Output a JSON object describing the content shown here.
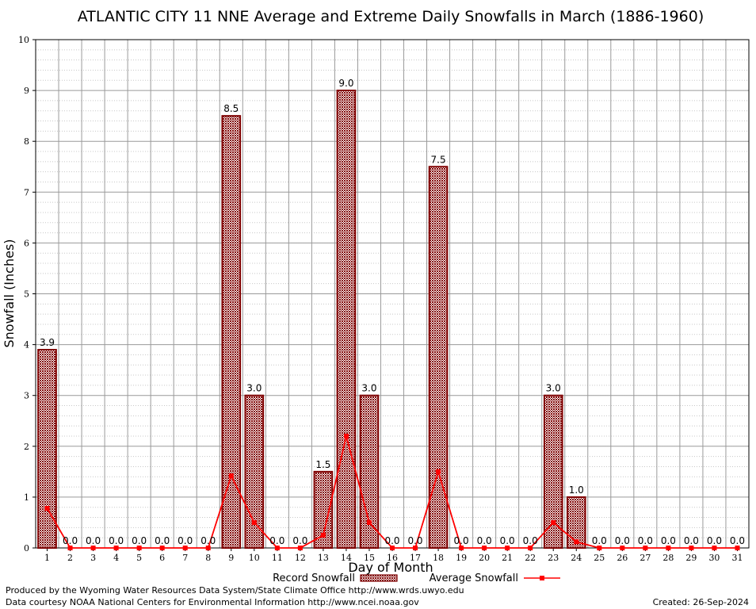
{
  "chart_data": {
    "type": "bar",
    "title": "ATLANTIC CITY 11 NNE Average and Extreme Daily Snowfalls in March (1886-1960)",
    "xlabel": "Day of Month",
    "ylabel": "Snowfall (Inches)",
    "ylim": [
      0,
      10
    ],
    "yticks": [
      "0",
      "1",
      "2",
      "3",
      "4",
      "5",
      "6",
      "7",
      "8",
      "9",
      "10"
    ],
    "grid": true,
    "legend_position": "bottom-center",
    "categories": [
      "1",
      "2",
      "3",
      "4",
      "5",
      "6",
      "7",
      "8",
      "9",
      "10",
      "11",
      "12",
      "13",
      "14",
      "15",
      "16",
      "17",
      "18",
      "19",
      "20",
      "21",
      "22",
      "23",
      "24",
      "25",
      "26",
      "27",
      "28",
      "29",
      "30",
      "31"
    ],
    "series": [
      {
        "name": "Record Snowfall",
        "kind": "bar",
        "color": "#800000",
        "values": [
          3.9,
          0,
          0,
          0,
          0,
          0,
          0,
          0,
          8.5,
          3.0,
          0,
          0,
          1.5,
          9.0,
          3.0,
          0,
          0,
          7.5,
          0,
          0,
          0,
          0,
          3.0,
          1.0,
          0,
          0,
          0,
          0,
          0,
          0,
          0
        ],
        "labels": [
          "3.9",
          "0.0",
          "0.0",
          "0.0",
          "0.0",
          "0.0",
          "0.0",
          "0.0",
          "8.5",
          "3.0",
          "0.0",
          "0.0",
          "1.5",
          "9.0",
          "3.0",
          "0.0",
          "0.0",
          "7.5",
          "0.0",
          "0.0",
          "0.0",
          "0.0",
          "3.0",
          "1.0",
          "0.0",
          "0.0",
          "0.0",
          "0.0",
          "0.0",
          "0.0",
          "0.0"
        ]
      },
      {
        "name": "Average Snowfall",
        "kind": "line",
        "color": "#ff0000",
        "values": [
          0.78,
          0,
          0,
          0,
          0,
          0,
          0,
          0,
          1.42,
          0.5,
          0,
          0,
          0.25,
          2.2,
          0.5,
          0,
          0,
          1.5,
          0,
          0,
          0,
          0,
          0.5,
          0.12,
          0,
          0,
          0,
          0,
          0,
          0,
          0
        ]
      }
    ]
  },
  "footer": {
    "produced_by": "Produced by the Wyoming Water Resources Data System/State Climate Office http://www.wrds.uwyo.edu",
    "data_courtesy": "Data courtesy NOAA National Centers for Environmental Information http://www.ncei.noaa.gov",
    "created": "Created: 26-Sep-2024"
  }
}
